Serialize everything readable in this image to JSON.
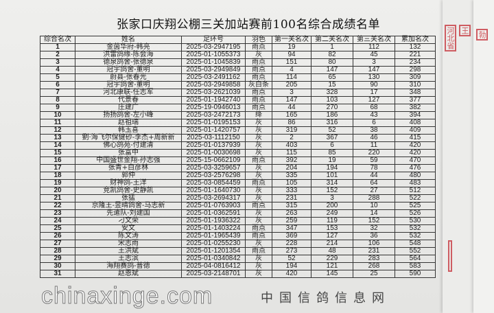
{
  "title": "张家口庆翔公棚三关加站赛前100名综合成绩名单",
  "headers": [
    "综合名次",
    "姓名",
    "足环号",
    "羽色",
    "第一关名次",
    "第二关名次",
    "第三关名次",
    "累加名次"
  ],
  "rows": [
    [
      "1",
      "金茵华府-韩亮",
      "2025-03-2947195",
      "雨点",
      "19",
      "1",
      "112",
      "132"
    ],
    [
      "2",
      "洪雷鸽缘-陈会海",
      "2025-01-1055373",
      "灰",
      "94",
      "82",
      "45",
      "221"
    ],
    [
      "3",
      "德泉鸽舍-张德泉",
      "2025-01-1045839",
      "雨点",
      "151",
      "80",
      "3",
      "234"
    ],
    [
      "4",
      "冠宇鸽舍-董明",
      "2025-03-2949849",
      "雨点",
      "4",
      "147",
      "147",
      "298"
    ],
    [
      "5",
      "蔚县-张春光",
      "2025-03-2491162",
      "雨点",
      "114",
      "65",
      "130",
      "309"
    ],
    [
      "6",
      "冠宇鸽舍-董明",
      "2025-03-2949858",
      "灰白条",
      "205",
      "15",
      "90",
      "310"
    ],
    [
      "7",
      "河北康联-任志军",
      "2025-03-2621039",
      "雨点",
      "3",
      "328",
      "17",
      "348"
    ],
    [
      "8",
      "代景春",
      "2025-01-1942740",
      "雨点",
      "147",
      "103",
      "127",
      "377"
    ],
    [
      "9",
      "庄建广",
      "2025-19-0946013",
      "雨点",
      "44",
      "270",
      "68",
      "382"
    ],
    [
      "10",
      "扬扬鸽舍-左小峰",
      "2025-03-2472173",
      "绛",
      "165",
      "186",
      "43",
      "394"
    ],
    [
      "11",
      "赵祖瑞",
      "2025-01-0195153",
      "灰",
      "86",
      "316",
      "6",
      "408"
    ],
    [
      "12",
      "韩玉喜",
      "2025-01-1420757",
      "灰",
      "319",
      "52",
      "38",
      "409"
    ],
    [
      "13",
      "劉·海飞尔保健砂-李杰+周新新",
      "2025-03-1112150",
      "灰",
      "2",
      "367",
      "46",
      "415"
    ],
    [
      "14",
      "佛心鸽苑-付建清",
      "2025-01-0137939",
      "灰",
      "403",
      "6",
      "11",
      "420"
    ],
    [
      "15",
      "张富中",
      "2025-01-0030698",
      "灰",
      "115",
      "85",
      "220",
      "420"
    ],
    [
      "16",
      "中国盛世金翔-孙志强",
      "2025-15-0662109",
      "雨点",
      "392",
      "19",
      "59",
      "470"
    ],
    [
      "17",
      "张青+白彦林",
      "2025-03-3259657",
      "灰",
      "204",
      "194",
      "78",
      "476"
    ],
    [
      "18",
      "郭仲",
      "2025-03-2576298",
      "灰",
      "335",
      "101",
      "44",
      "480"
    ],
    [
      "19",
      "财神鸽-王洋",
      "2025-03-0854459",
      "雨点",
      "105",
      "314",
      "64",
      "483"
    ],
    [
      "20",
      "竞凯鸽舍-史静凯",
      "2025-01-1640730",
      "灰",
      "333",
      "152",
      "27",
      "512"
    ],
    [
      "21",
      "张猛",
      "2025-03-2694317",
      "灰",
      "231",
      "3",
      "288",
      "522"
    ],
    [
      "22",
      "京隆王-昱晴鸽舍-马志新",
      "2025-01-0763903",
      "雨点",
      "315",
      "200",
      "10",
      "525"
    ],
    [
      "23",
      "先遣队-刘建国",
      "2025-01-0362591",
      "灰",
      "263",
      "249",
      "14",
      "526"
    ],
    [
      "24",
      "刁文荣",
      "2025-01-1936322",
      "灰",
      "259",
      "119",
      "152",
      "530"
    ],
    [
      "25",
      "安文",
      "2025-01-1403224",
      "雨点",
      "347",
      "153",
      "32",
      "532"
    ],
    [
      "26",
      "陈文涛",
      "2025-01-1965439",
      "雨点",
      "369",
      "127",
      "36",
      "532"
    ],
    [
      "27",
      "宋志雨",
      "2025-01-0255230",
      "灰",
      "228",
      "214",
      "106",
      "548"
    ],
    [
      "28",
      "王洪斌",
      "2025-01-1201354",
      "雨点",
      "273",
      "48",
      "231",
      "552"
    ],
    [
      "29",
      "王志滨",
      "2025-01-0340842",
      "灰",
      "52",
      "229",
      "283",
      "564"
    ],
    [
      "30",
      "海翔赛鸽-普德",
      "2025-04-0816412",
      "灰",
      "194",
      "121",
      "268",
      "583"
    ],
    [
      "31",
      "赵恩斌",
      "2025-03-2148701",
      "灰",
      "420",
      "145",
      "25",
      "590"
    ]
  ],
  "stamps": [
    "河北省",
    "王",
    "勃"
  ],
  "watermark": {
    "url": "chinaxinge.com",
    "name": "中国信鸽信息网"
  },
  "colors": {
    "stamp": "#c9434a"
  }
}
